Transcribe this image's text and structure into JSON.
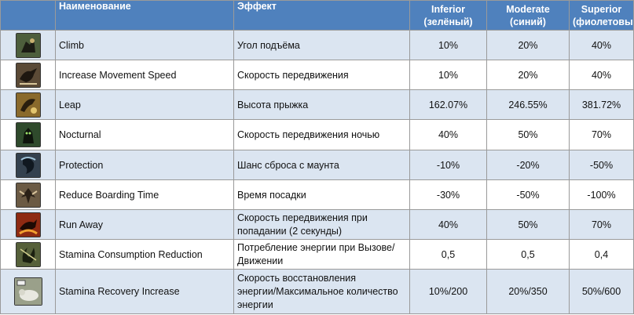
{
  "header": {
    "name": "Наименование",
    "effect": "Эффект",
    "inferior_1": "Inferior",
    "inferior_2": "(зелёный)",
    "moderate_1": "Moderate",
    "moderate_2": "(синий)",
    "superior_1": "Superior",
    "superior_2": "(фиолетовый)"
  },
  "rows": [
    {
      "icon": "climb-icon",
      "name": "Climb",
      "effect": "Угол подъёма",
      "inferior": "10%",
      "moderate": "20%",
      "superior": "40%"
    },
    {
      "icon": "movement-speed-icon",
      "name": "Increase Movement Speed",
      "effect": "Скорость передвижения",
      "inferior": "10%",
      "moderate": "20%",
      "superior": "40%"
    },
    {
      "icon": "leap-icon",
      "name": "Leap",
      "effect": "Высота прыжка",
      "inferior": "162.07%",
      "moderate": "246.55%",
      "superior": "381.72%"
    },
    {
      "icon": "nocturnal-icon",
      "name": "Nocturnal",
      "effect": "Скорость передвижения ночью",
      "inferior": "40%",
      "moderate": "50%",
      "superior": "70%"
    },
    {
      "icon": "protection-icon",
      "name": "Protection",
      "effect": "Шанс сброса с маунта",
      "inferior": "-10%",
      "moderate": "-20%",
      "superior": "-50%"
    },
    {
      "icon": "boarding-time-icon",
      "name": "Reduce Boarding Time",
      "effect": "Время посадки",
      "inferior": "-30%",
      "moderate": "-50%",
      "superior": "-100%"
    },
    {
      "icon": "run-away-icon",
      "name": "Run Away",
      "effect_1": "Скорость передвижения при",
      "effect_2": "попадании (2 секунды)",
      "inferior": "40%",
      "moderate": "50%",
      "superior": "70%"
    },
    {
      "icon": "stamina-consumption-icon",
      "name": "Stamina Consumption Reduction",
      "effect_1": "Потребление энергии при Вызове/",
      "effect_2": "Движении",
      "inferior": "0,5",
      "moderate": "0,5",
      "superior": "0,4"
    },
    {
      "icon": "stamina-recovery-icon",
      "name": "Stamina Recovery Increase",
      "effect_1": "Скорость восстановления",
      "effect_2": "энергии/Максимальное количество",
      "effect_3": "энергии",
      "inferior": "10%/200",
      "moderate": "20%/350",
      "superior": "50%/600"
    }
  ],
  "colors": {
    "header_bg": "#4f81bd",
    "row_odd_bg": "#dbe5f1",
    "row_even_bg": "#ffffff"
  }
}
